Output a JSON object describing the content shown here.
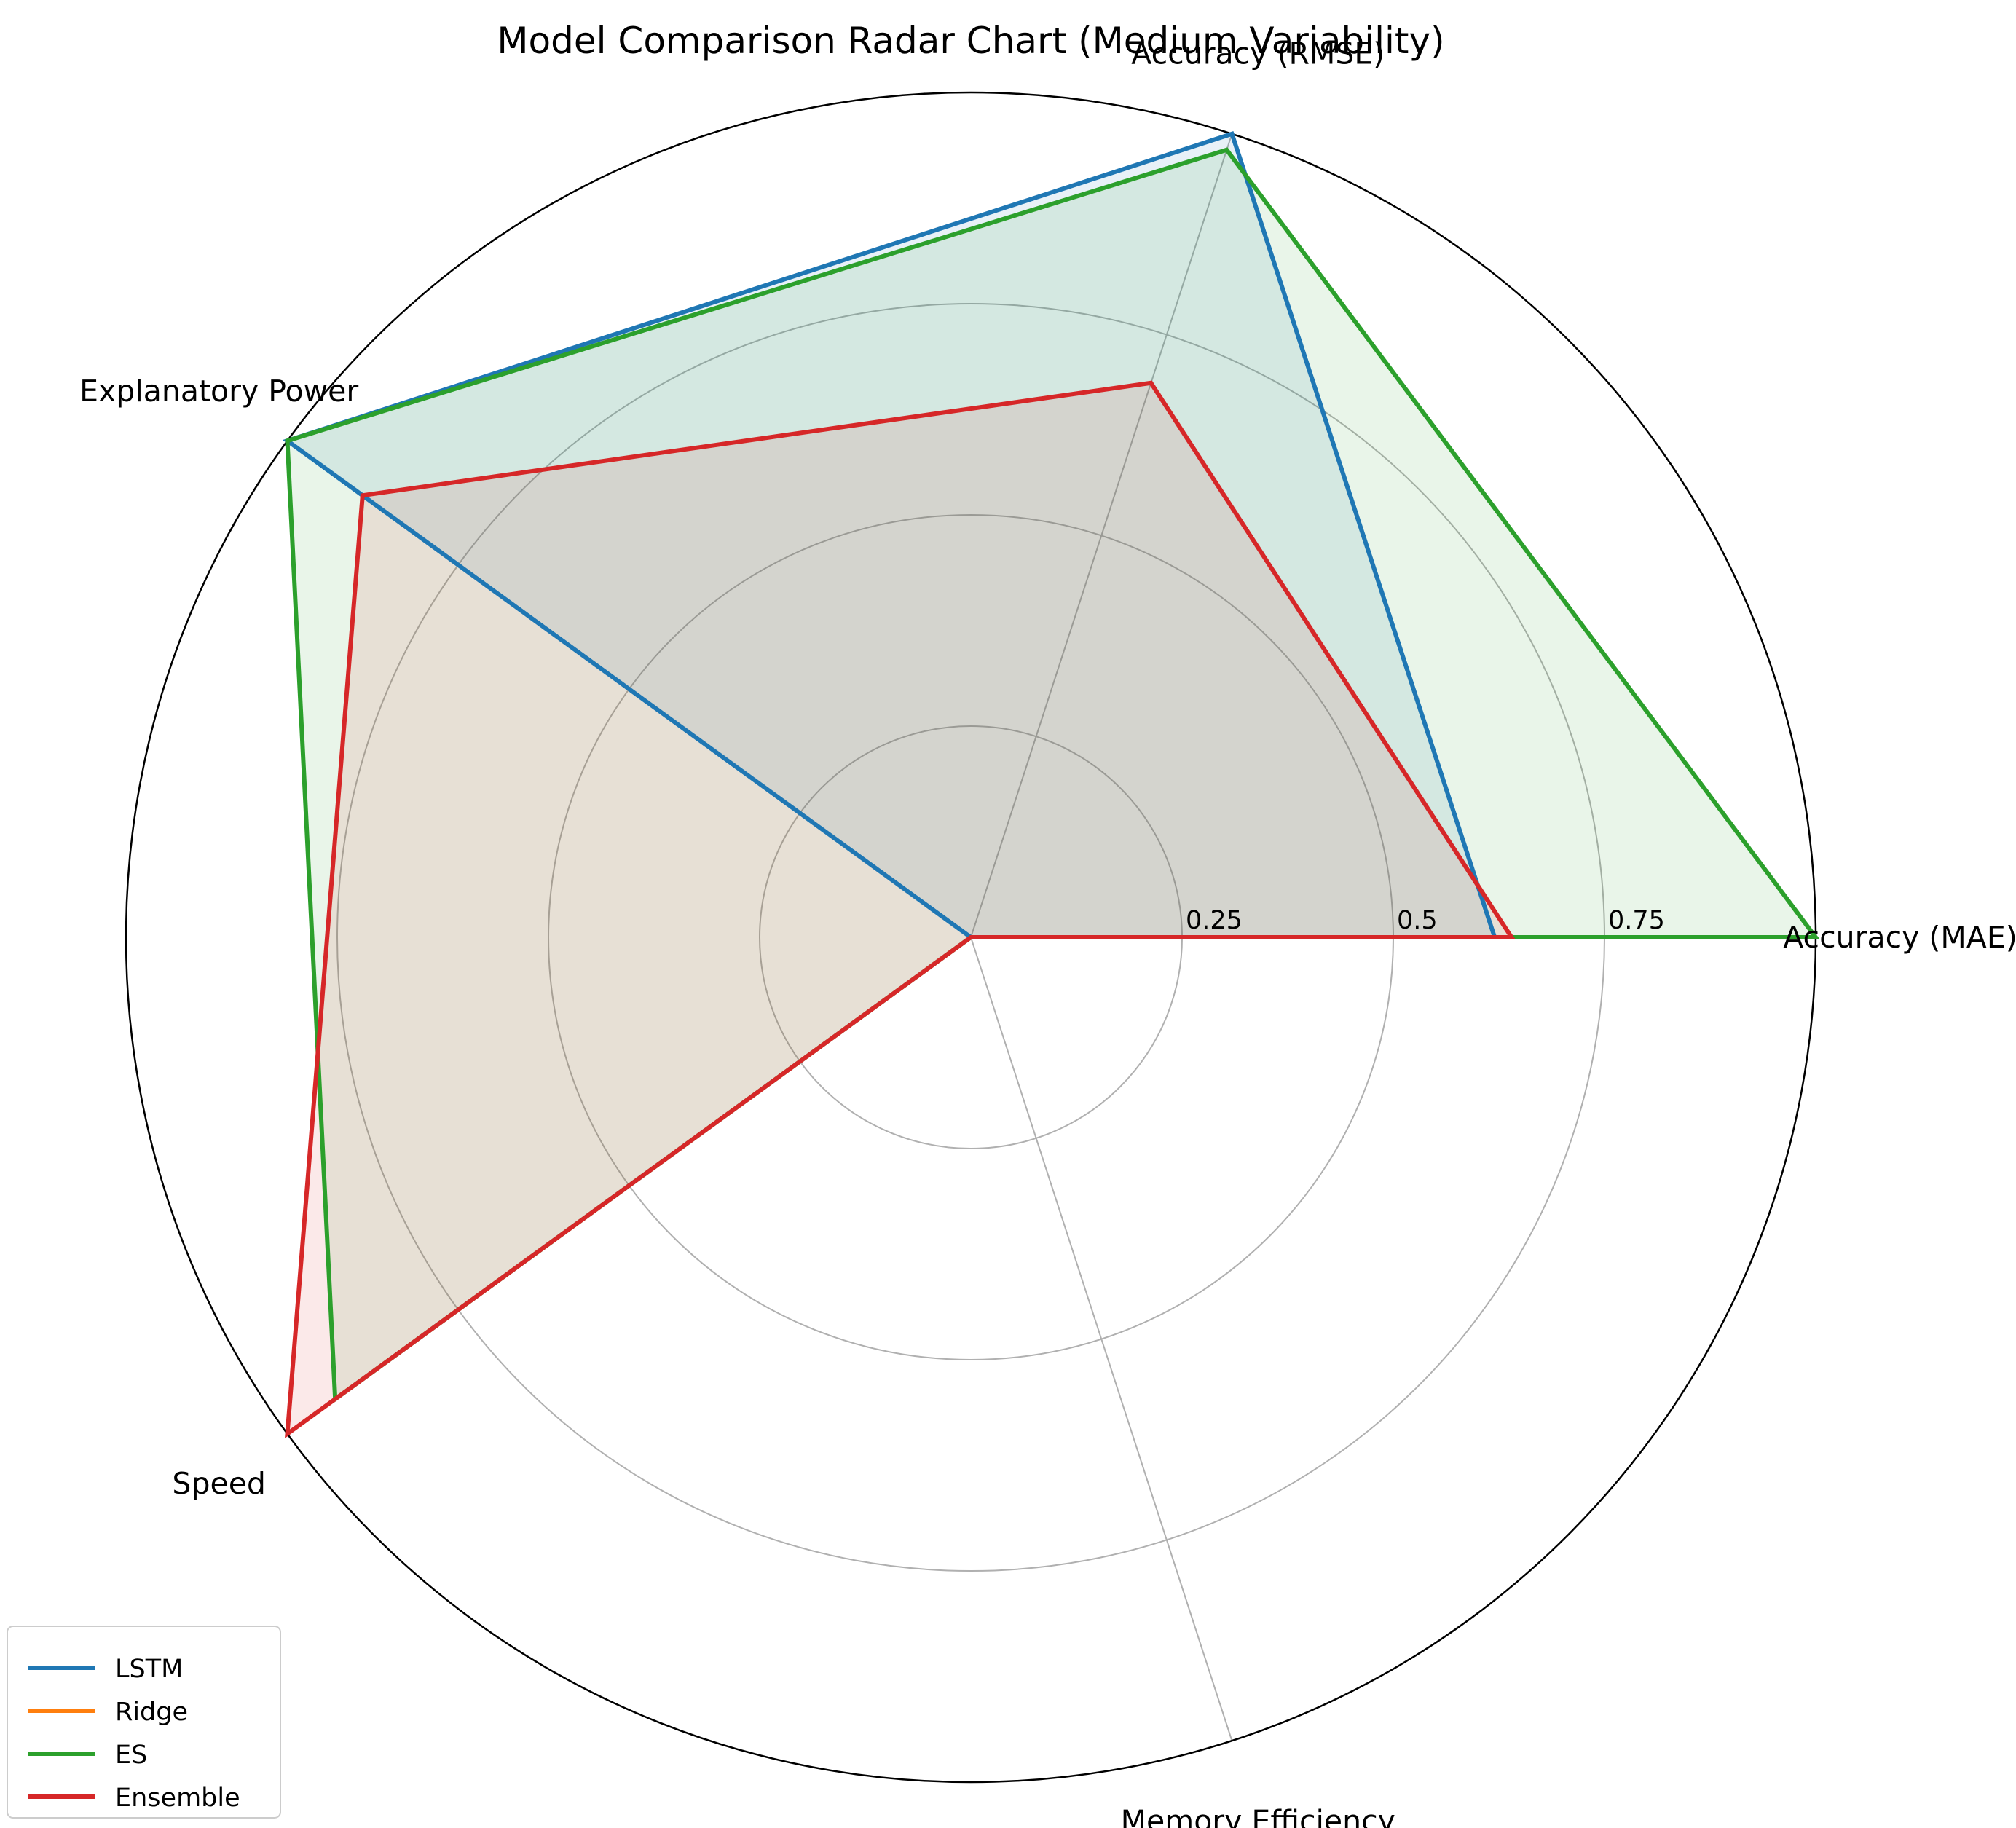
{
  "chart_data": {
    "type": "radar",
    "title": "Model Comparison Radar Chart (Medium Variability)",
    "axes": [
      "Accuracy (MAE)",
      "Accuracy (RMSE)",
      "Explanatory Power",
      "Speed",
      "Memory Efficiency"
    ],
    "r_ticks": [
      0.25,
      0.5,
      0.75
    ],
    "r_tick_labels": [
      "0.25",
      "0.5",
      "0.75"
    ],
    "r_max": 1.0,
    "grid": true,
    "legend_position": "lower-left",
    "series": [
      {
        "name": "LSTM",
        "color": "#1f77b4",
        "values": [
          0.62,
          1.0,
          1.0,
          0.0,
          0.0
        ]
      },
      {
        "name": "Ridge",
        "color": "#ff7f0e",
        "values": [
          0.0,
          0.0,
          0.0,
          0.0,
          0.0
        ]
      },
      {
        "name": "ES",
        "color": "#2ca02c",
        "values": [
          1.0,
          0.98,
          1.0,
          0.93,
          0.0
        ]
      },
      {
        "name": "Ensemble",
        "color": "#d62728",
        "values": [
          0.64,
          0.69,
          0.89,
          1.0,
          0.0
        ]
      }
    ]
  }
}
